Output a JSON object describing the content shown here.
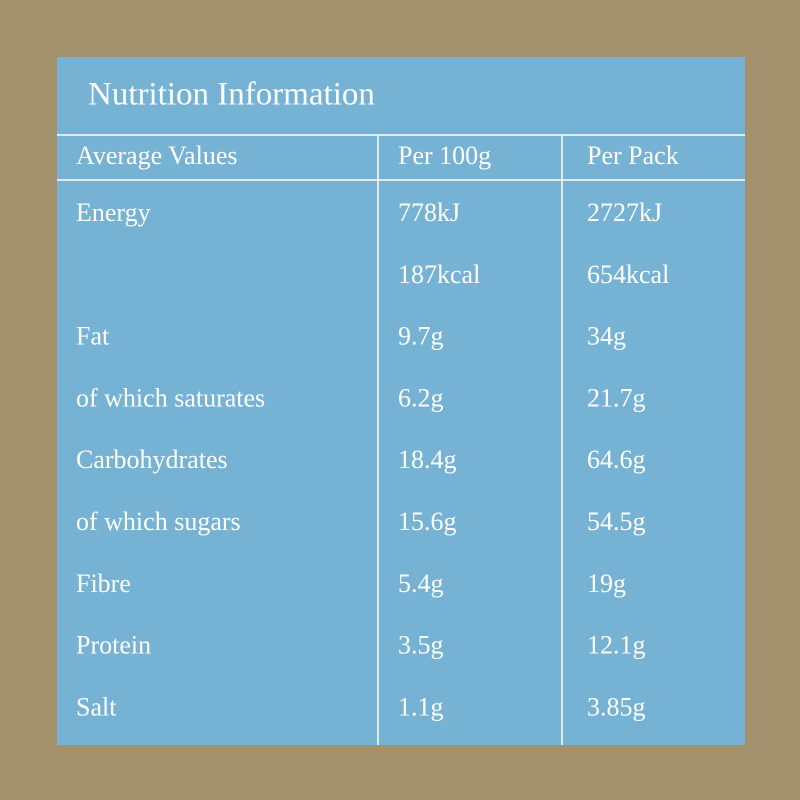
{
  "title": "Nutrition Information",
  "table": {
    "header": [
      "Average Values",
      "Per 100g",
      "Per Pack"
    ],
    "rows": [
      {
        "label": "Energy",
        "per_100g": [
          "778kJ",
          "187kcal"
        ],
        "per_pack": [
          "2727kJ",
          "654kcal"
        ]
      },
      {
        "label": "Fat",
        "per_100g": [
          "9.7g"
        ],
        "per_pack": [
          "34g"
        ]
      },
      {
        "label": "of which saturates",
        "per_100g": [
          "6.2g"
        ],
        "per_pack": [
          "21.7g"
        ]
      },
      {
        "label": "Carbohydrates",
        "per_100g": [
          "18.4g"
        ],
        "per_pack": [
          "64.6g"
        ]
      },
      {
        "label": "of which sugars",
        "per_100g": [
          "15.6g"
        ],
        "per_pack": [
          "54.5g"
        ]
      },
      {
        "label": "Fibre",
        "per_100g": [
          "5.4g"
        ],
        "per_pack": [
          "19g"
        ]
      },
      {
        "label": "Protein",
        "per_100g": [
          "3.5g"
        ],
        "per_pack": [
          "12.1g"
        ]
      },
      {
        "label": "Salt",
        "per_100g": [
          "1.1g"
        ],
        "per_pack": [
          "3.85g"
        ]
      }
    ]
  }
}
